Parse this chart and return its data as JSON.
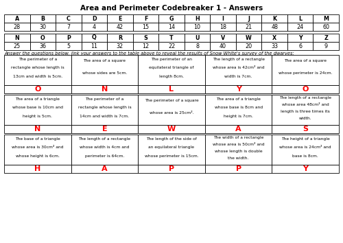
{
  "title": "Area and Perimeter Codebreaker 1 - Answers",
  "top_table_headers": [
    "A",
    "B",
    "C",
    "D",
    "E",
    "F",
    "G",
    "H",
    "I",
    "J",
    "K",
    "L",
    "M"
  ],
  "top_table_values": [
    "28",
    "30",
    "7",
    "4",
    "42",
    "15",
    "14",
    "10",
    "18",
    "21",
    "48",
    "24",
    "60"
  ],
  "bottom_table_headers": [
    "N",
    "O",
    "P",
    "Q",
    "R",
    "S",
    "T",
    "U",
    "V",
    "W",
    "X",
    "Y",
    "Z"
  ],
  "bottom_table_values": [
    "25",
    "36",
    "5",
    "11",
    "32",
    "12",
    "22",
    "8",
    "40",
    "20",
    "33",
    "6",
    "9"
  ],
  "instruction": "Answer the questions below, link your answers to the table above to reveal the results of Snow White's survey of the dwarves:",
  "question_rows": [
    {
      "questions": [
        "The perimeter of a\nrectangle whose length is\n13cm and width is 5cm.",
        "The area of a square\nwhose sides are 5cm.",
        "The perimeter of an\nequilateral triangle of\nlength 8cm.",
        "The length of a rectangle\nwhose area is 42cm² and\nwidth is 7cm.",
        "The area of a square\nwhose perimeter is 24cm."
      ],
      "answers": [
        "O",
        "N",
        "L",
        "Y",
        "O"
      ]
    },
    {
      "questions": [
        "The area of a triangle\nwhose base is 10cm and\nheight is 5cm.",
        "The perimeter of a\nrectangle whose length is\n14cm and width is 7cm.",
        "The perimeter of a square\nwhose area is 25cm².",
        "The area of a triangle\nwhose base is 8cm and\nheight is 7cm.",
        "The length of a rectangle\nwhose area 48cm² and\nlength is three times its\nwidth."
      ],
      "answers": [
        "N",
        "E",
        "W",
        "A",
        "S"
      ]
    },
    {
      "questions": [
        "The base of a triangle\nwhose area is 30cm² and\nwhose height is 6cm.",
        "The length of a rectangle\nwhose width is 4cm and\nperimeter is 64cm.",
        "The length of the side of\nan equilateral triangle\nwhose perimeter is 15cm.",
        "The width of a rectangle\nwhose area is 50cm² and\nwhose length is double\nthe width.",
        "The height of a triangle\nwhose area is 24cm² and\nbase is 8cm."
      ],
      "answers": [
        "H",
        "A",
        "P",
        "P",
        "Y"
      ]
    }
  ]
}
